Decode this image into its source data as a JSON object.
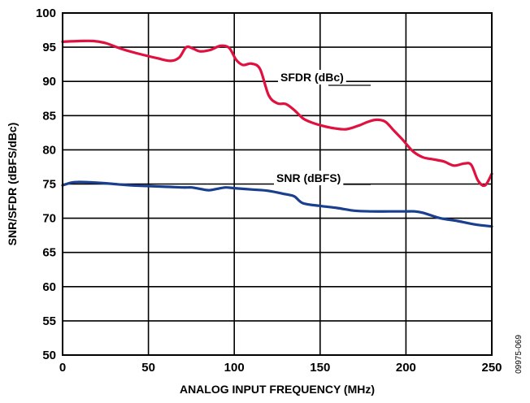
{
  "chart_data": {
    "type": "line",
    "xlabel": "ANALOG INPUT FREQUENCY (MHz)",
    "ylabel": "SNR/SFDR (dBFS/dBc)",
    "xlim": [
      0,
      250
    ],
    "ylim": [
      50,
      100
    ],
    "x_ticks": [
      0,
      50,
      100,
      150,
      200,
      250
    ],
    "y_ticks": [
      50,
      55,
      60,
      65,
      70,
      75,
      80,
      85,
      90,
      95,
      100
    ],
    "grid": true,
    "figure_id": "09975-069",
    "series": [
      {
        "name": "SFDR (dBc)",
        "color": "#e0103f",
        "x": [
          0,
          10,
          18,
          25,
          35,
          45,
          55,
          63,
          68,
          72,
          76,
          80,
          86,
          92,
          97,
          101,
          105,
          110,
          115,
          120,
          125,
          130,
          135,
          140,
          145,
          150,
          157,
          165,
          172,
          178,
          183,
          188,
          193,
          198,
          204,
          210,
          216,
          222,
          228,
          234,
          238,
          242,
          246,
          250
        ],
        "values": [
          95.8,
          95.9,
          95.9,
          95.6,
          94.7,
          94.0,
          93.4,
          93.0,
          93.5,
          95.0,
          94.8,
          94.4,
          94.6,
          95.2,
          94.9,
          93.2,
          92.4,
          92.6,
          91.8,
          88.0,
          86.8,
          86.7,
          85.8,
          84.6,
          84.0,
          83.6,
          83.2,
          83.0,
          83.5,
          84.1,
          84.4,
          84.1,
          82.8,
          81.5,
          79.8,
          78.9,
          78.6,
          78.3,
          77.7,
          78.0,
          77.8,
          75.5,
          74.8,
          76.5
        ]
      },
      {
        "name": "SNR (dBFS)",
        "color": "#1a3f8f",
        "x": [
          0,
          5,
          10,
          20,
          30,
          40,
          50,
          60,
          70,
          75,
          80,
          85,
          90,
          95,
          100,
          110,
          120,
          130,
          135,
          140,
          150,
          160,
          170,
          180,
          190,
          200,
          205,
          210,
          220,
          230,
          240,
          250
        ],
        "values": [
          74.8,
          75.2,
          75.3,
          75.2,
          75.0,
          74.8,
          74.7,
          74.6,
          74.5,
          74.5,
          74.3,
          74.1,
          74.3,
          74.5,
          74.4,
          74.2,
          74.0,
          73.5,
          73.2,
          72.2,
          71.8,
          71.5,
          71.1,
          71.0,
          71.0,
          71.0,
          71.0,
          70.8,
          70.0,
          69.6,
          69.1,
          68.8
        ]
      }
    ]
  }
}
